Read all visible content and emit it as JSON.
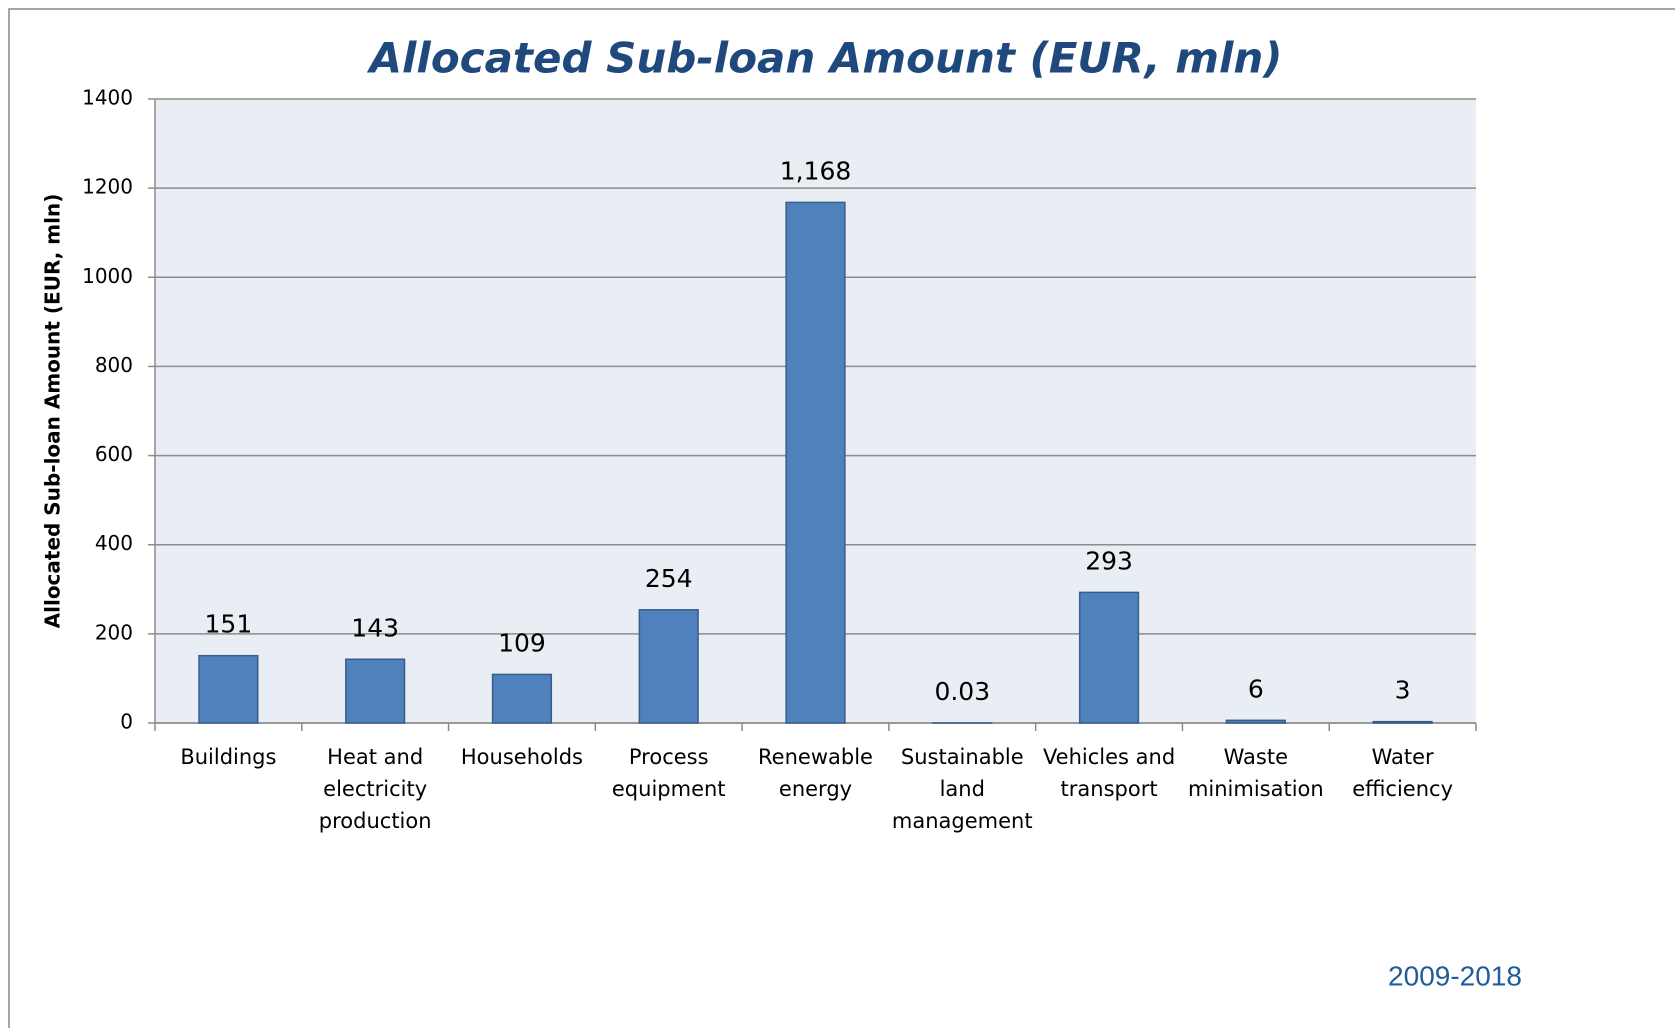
{
  "chart_data": {
    "type": "bar",
    "title": "Allocated Sub-loan Amount (EUR, mln)",
    "y_axis_label": "Allocated Sub-loan Amount (EUR, mln)",
    "footer": "2009-2018",
    "categories": [
      "Buildings",
      "Heat and electricity production",
      "Households",
      "Process equipment",
      "Renewable energy",
      "Sustainable land management",
      "Vehicles and transport",
      "Waste minimisation",
      "Water efficiency"
    ],
    "values": [
      151,
      143,
      109,
      254,
      1168,
      0.03,
      293,
      6,
      3
    ],
    "value_labels": [
      "151",
      "143",
      "109",
      "254",
      "1,168",
      "0.03",
      "293",
      "6",
      "3"
    ],
    "color": "#4f81bd",
    "ylim": [
      0,
      1400
    ],
    "yticks": [
      0,
      200,
      400,
      600,
      800,
      1000,
      1200,
      1400
    ],
    "grid": true
  }
}
